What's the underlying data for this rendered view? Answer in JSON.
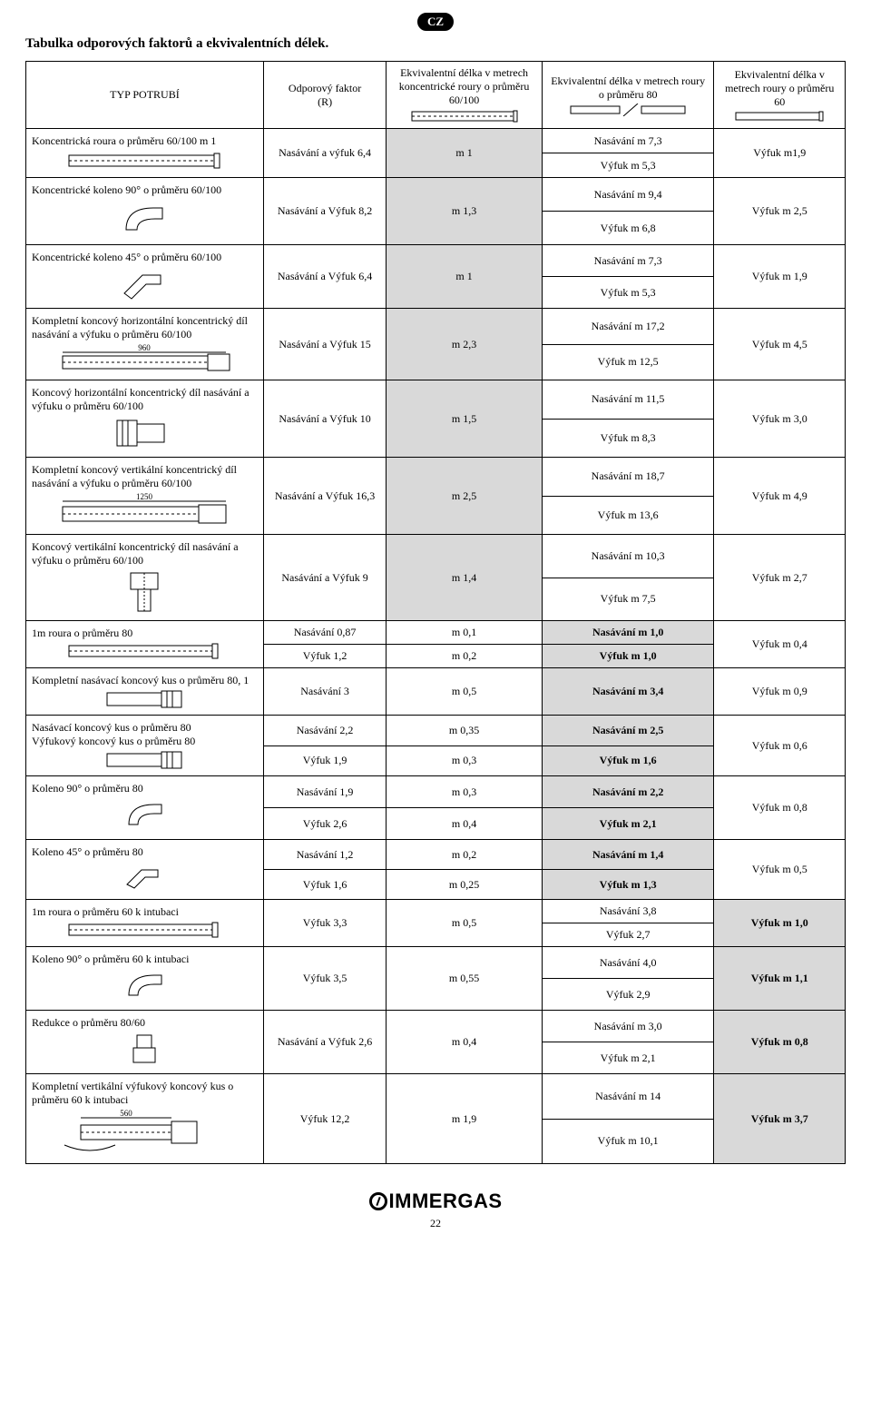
{
  "badge": "CZ",
  "page_title": "Tabulka odporových faktorů a ekvivalentních délek.",
  "page_number": "22",
  "brand": "IMMERGAS",
  "header": {
    "c1": "TYP POTRUBÍ",
    "c2": "Odporový faktor\n(R)",
    "c3": "Ekvivalentní délka v metrech koncentrické roury o průměru 60/100",
    "c4": "Ekvivalentní délka v metrech roury o průměru 80",
    "c5": "Ekvivalentní délka v metrech roury o průměru 60"
  },
  "rows": [
    {
      "desc": "Koncentrická roura o průměru 60/100 m 1",
      "factor": "Nasávání a výfuk 6,4",
      "col3": "m 1",
      "c3shade": true,
      "col4a": "Nasávání m 7,3",
      "col4b": "Výfuk m 5,3",
      "col5": "Výfuk m1,9"
    },
    {
      "desc": "Koncentrické koleno 90° o průměru  60/100",
      "factor": "Nasávání a Výfuk 8,2",
      "col3": "m 1,3",
      "c3shade": true,
      "col4a": "Nasávání m 9,4",
      "col4b": "Výfuk m 6,8",
      "col5": "Výfuk m 2,5"
    },
    {
      "desc": "Koncentrické koleno 45° o průměru  60/100",
      "factor": "Nasávání a Výfuk 6,4",
      "col3": "m 1",
      "c3shade": true,
      "col4a": "Nasávání m 7,3",
      "col4b": "Výfuk m 5,3",
      "col5": "Výfuk m 1,9"
    },
    {
      "desc": "Kompletní koncový horizontální koncentrický díl nasávání a výfuku o průměru 60/100",
      "dim": "960",
      "factor": "Nasávání a Výfuk 15",
      "col3": "m 2,3",
      "c3shade": true,
      "col4a": "Nasávání m 17,2",
      "col4b": "Výfuk m 12,5",
      "col5": "Výfuk m 4,5"
    },
    {
      "desc": "Koncový horizontální koncentrický díl nasávání a výfuku o průměru 60/100",
      "factor": "Nasávání a Výfuk 10",
      "col3": "m 1,5",
      "c3shade": true,
      "col4a": "Nasávání m 11,5",
      "col4b": "Výfuk m 8,3",
      "col5": "Výfuk m 3,0"
    },
    {
      "desc": "Kompletní koncový vertikální koncentrický díl nasávání a výfuku o průměru 60/100",
      "dim": "1250",
      "factor": "Nasávání a Výfuk 16,3",
      "col3": "m 2,5",
      "c3shade": true,
      "col4a": "Nasávání m 18,7",
      "col4b": "Výfuk m 13,6",
      "col5": "Výfuk m 4,9"
    },
    {
      "desc": "Koncový vertikální koncentrický díl nasávání a výfuku o průměru 60/100",
      "factor": "Nasávání a Výfuk 9",
      "col3": "m 1,4",
      "c3shade": true,
      "col4a": "Nasávání m 10,3",
      "col4b": "Výfuk m 7,5",
      "col5": "Výfuk m 2,7"
    },
    {
      "desc": "1m roura o průměru 80",
      "two": true,
      "r1f": "Nasávání 0,87",
      "r1c3": "m 0,1",
      "r1c4": "Nasávání m 1,0",
      "r2f": "Výfuk 1,2",
      "r2c3": "m 0,2",
      "r2c4": "Výfuk m 1,0",
      "col5": "Výfuk m 0,4"
    },
    {
      "desc": "Kompletní nasávací koncový kus o průměru 80, 1",
      "single": true,
      "factor": "Nasávání 3",
      "col3": "m 0,5",
      "col4": "Nasávání m 3,4",
      "col5": "Výfuk m 0,9"
    },
    {
      "desc": "Nasávací koncový kus o průměru 80\nVýfukový koncový kus o průměru 80",
      "two": true,
      "r1f": "Nasávání 2,2",
      "r1c3": "m 0,35",
      "r1c4": "Nasávání m 2,5",
      "r2f": "Výfuk 1,9",
      "r2c3": "m 0,3",
      "r2c4": "Výfuk m 1,6",
      "col5": "Výfuk m 0,6"
    },
    {
      "desc": "Koleno 90° o průměru 80",
      "two": true,
      "r1f": "Nasávání 1,9",
      "r1c3": "m 0,3",
      "r1c4": "Nasávání m 2,2",
      "r2f": "Výfuk 2,6",
      "r2c3": "m 0,4",
      "r2c4": "Výfuk m 2,1",
      "col5": "Výfuk m 0,8"
    },
    {
      "desc": "Koleno 45° o průměru 80",
      "two": true,
      "r1f": "Nasávání 1,2",
      "r1c3": "m 0,2",
      "r1c4": "Nasávání m 1,4",
      "r2f": "Výfuk 1,6",
      "r2c3": "m 0,25",
      "r2c4": "Výfuk m 1,3",
      "col5": "Výfuk m 0,5"
    },
    {
      "desc": "1m roura o průměru 60 k intubaci",
      "factor": "Výfuk 3,3",
      "col3": "m 0,5",
      "col4a": "Nasávání 3,8",
      "col4b": "Výfuk 2,7",
      "col5": "Výfuk m 1,0",
      "shade5": true
    },
    {
      "desc": "Koleno 90° o průměru 60 k intubaci",
      "factor": "Výfuk 3,5",
      "col3": "m 0,55",
      "col4a": "Nasávání 4,0",
      "col4b": "Výfuk 2,9",
      "col5": "Výfuk m 1,1",
      "shade5": true
    },
    {
      "desc": "Redukce o průměru 80/60",
      "factor": "Nasávání a Výfuk 2,6",
      "col3": "m 0,4",
      "col4a": "Nasávání m 3,0",
      "col4b": "Výfuk m 2,1",
      "col5": "Výfuk m 0,8",
      "shade5": true
    },
    {
      "desc": "Kompletní vertikální výfukový koncový kus o průměru 60 k intubaci",
      "dim": "560",
      "factor": "Výfuk 12,2",
      "col3": "m 1,9",
      "col4a": "Nasávání m 14",
      "col4b": "Výfuk m 10,1",
      "col5": "Výfuk m 3,7",
      "shade5": true
    }
  ]
}
